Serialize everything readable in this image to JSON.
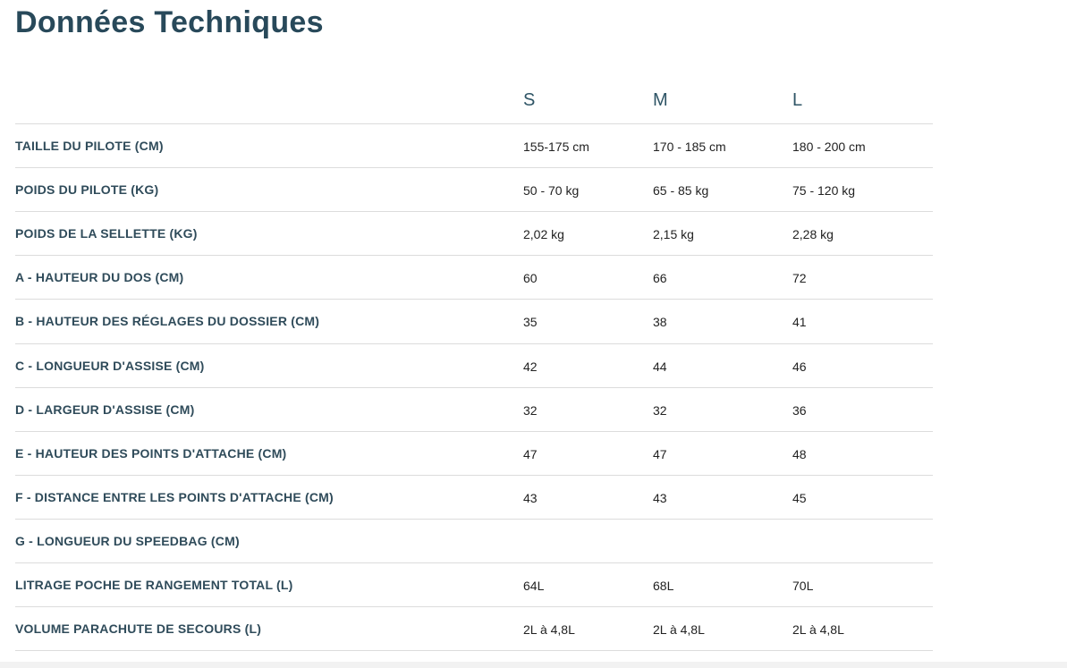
{
  "title": "Données Techniques",
  "table": {
    "header": [
      "S",
      "M",
      "L"
    ],
    "rows": [
      {
        "label": "TAILLE DU PILOTE (CM)",
        "cells": [
          "155-175 cm",
          "170 - 185 cm",
          "180 - 200 cm"
        ]
      },
      {
        "label": "POIDS DU PILOTE (KG)",
        "cells": [
          "50 - 70 kg",
          "65 - 85 kg",
          "75 - 120 kg"
        ]
      },
      {
        "label": "POIDS DE LA SELLETTE (KG)",
        "cells": [
          "2,02 kg",
          "2,15 kg",
          "2,28 kg"
        ]
      },
      {
        "label": "A - HAUTEUR DU DOS (CM)",
        "cells": [
          "60",
          "66",
          "72"
        ]
      },
      {
        "label": "B - HAUTEUR DES RÉGLAGES DU DOSSIER (CM)",
        "cells": [
          "35",
          "38",
          "41"
        ]
      },
      {
        "label": "C - LONGUEUR D'ASSISE (CM)",
        "cells": [
          "42",
          "44",
          "46"
        ]
      },
      {
        "label": "D - LARGEUR D'ASSISE (CM)",
        "cells": [
          "32",
          "32",
          "36"
        ]
      },
      {
        "label": "E - HAUTEUR DES POINTS D'ATTACHE (CM)",
        "cells": [
          "47",
          "47",
          "48"
        ]
      },
      {
        "label": "F - DISTANCE ENTRE LES POINTS D'ATTACHE (CM)",
        "cells": [
          "43",
          "43",
          "45"
        ]
      },
      {
        "label": "G - LONGUEUR DU SPEEDBAG (CM)",
        "cells": []
      },
      {
        "label": "LITRAGE POCHE DE RANGEMENT TOTAL (L)",
        "cells": [
          "64L",
          "68L",
          "70L"
        ]
      },
      {
        "label": "VOLUME PARACHUTE DE SECOURS (L)",
        "cells": [
          "2L à 4,8L",
          "2L à 4,8L",
          "2L à 4,8L"
        ]
      }
    ]
  }
}
